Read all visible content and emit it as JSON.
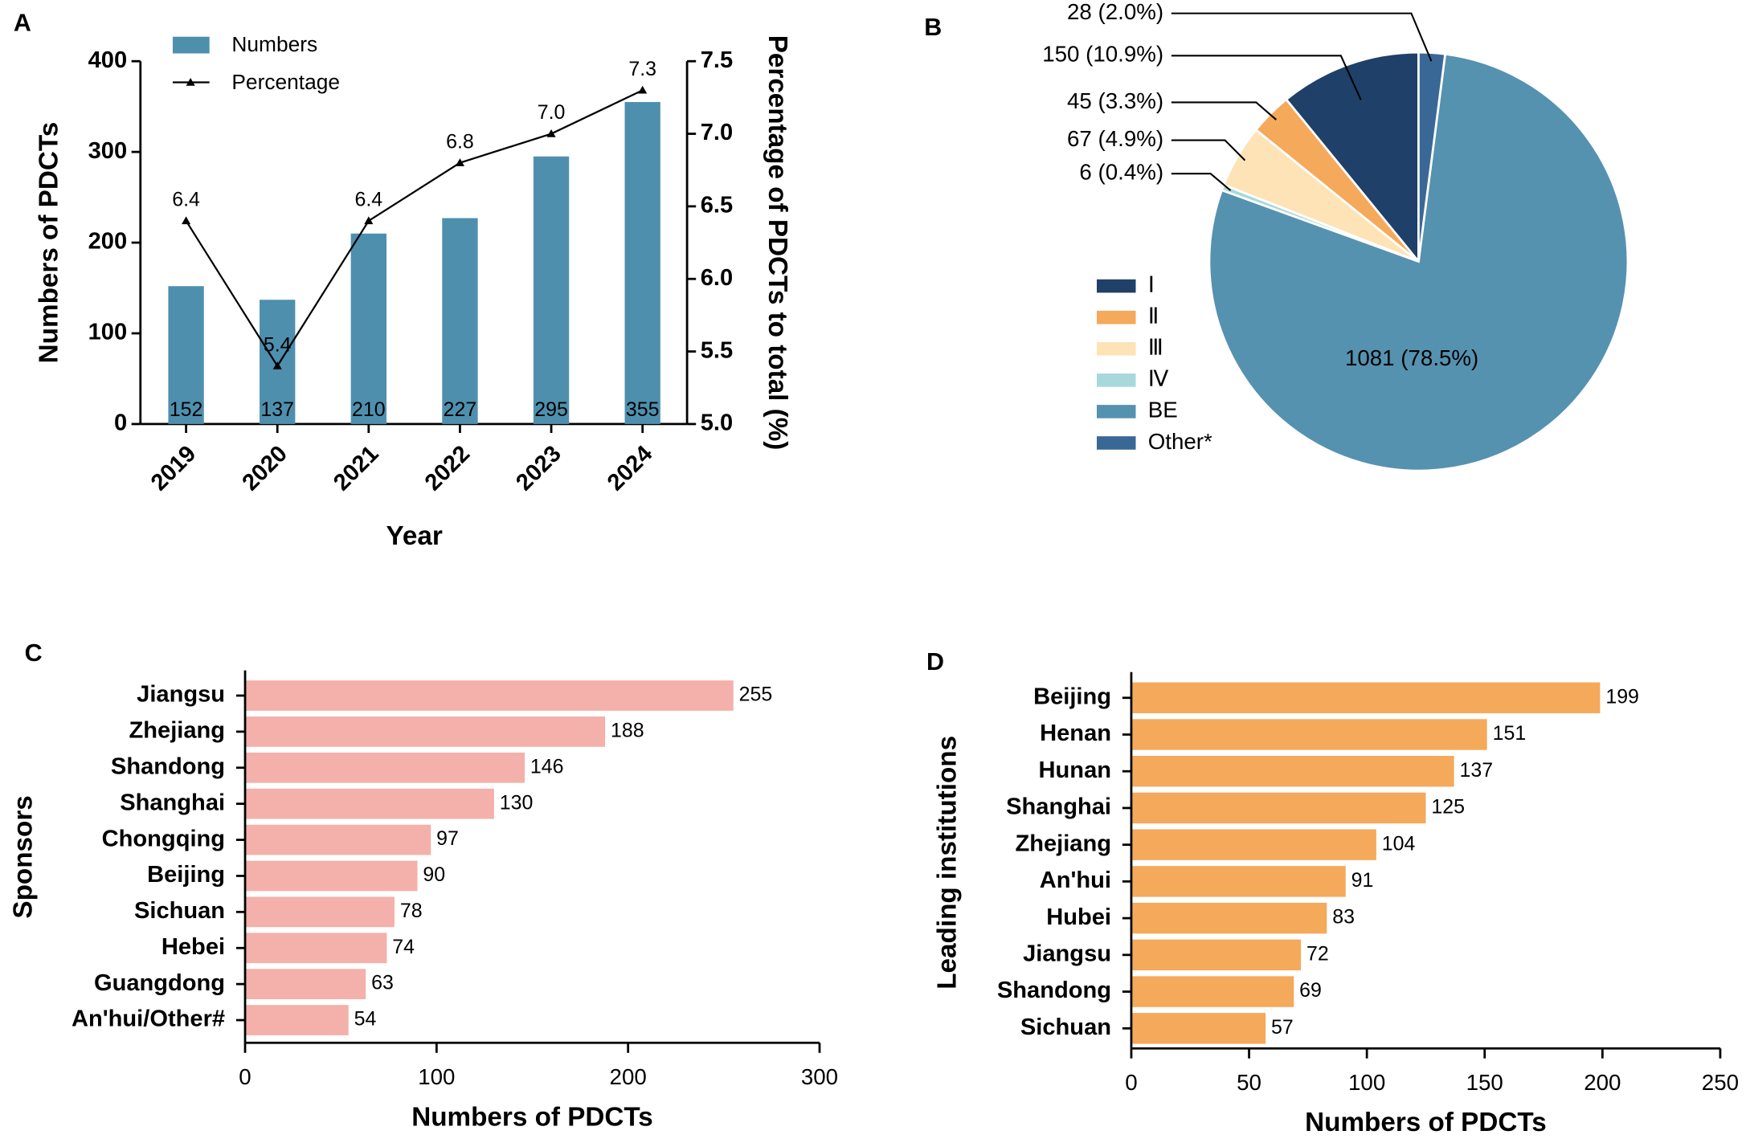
{
  "chart_data": [
    {
      "type": "combo",
      "panel_label": "A",
      "categories": [
        "2019",
        "2020",
        "2021",
        "2022",
        "2023",
        "2024"
      ],
      "x_label": "Year",
      "y_label": "Numbers of PDCTs",
      "y2_label": "Percentage of PDCTs to total (%)",
      "ylim": [
        0,
        400
      ],
      "yticks": [
        0,
        100,
        200,
        300,
        400
      ],
      "y2lim": [
        5,
        7.5
      ],
      "y2ticks": [
        {
          "value": 5,
          "label": "5.0"
        },
        5.5,
        {
          "value": 6,
          "label": "6.0"
        },
        6.5,
        {
          "value": 7,
          "label": "7.0"
        },
        7.5
      ],
      "series": [
        {
          "name": "Numbers",
          "kind": "bar",
          "color": "#4f8fae",
          "values": [
            152,
            137,
            210,
            227,
            295,
            355
          ]
        },
        {
          "name": "Percentage",
          "kind": "line",
          "axis": "y2",
          "color": "#000000",
          "values": [
            6.4,
            5.4,
            6.4,
            6.8,
            7.0,
            7.3
          ],
          "value_labels": [
            "6.4",
            "5.4",
            "6.4",
            "6.8",
            "7.0",
            "7.3"
          ]
        }
      ]
    },
    {
      "type": "pie",
      "panel_label": "B",
      "categories": [
        "Ⅰ",
        "Ⅱ",
        "Ⅲ",
        "Ⅳ",
        "BE",
        "Other*"
      ],
      "values": [
        150,
        45,
        67,
        6,
        1081,
        28
      ],
      "value_labels": [
        "150 (10.9%)",
        "45 (3.3%)",
        "67 (4.9%)",
        "6 (0.4%)",
        "1081 (78.5%)",
        "28 (2.0%)"
      ],
      "colors": [
        "#1f4068",
        "#f5a95a",
        "#fde3b5",
        "#a8d8dc",
        "#5592b0",
        "#3a6896"
      ]
    },
    {
      "type": "hbar",
      "panel_label": "C",
      "x_label": "Numbers of PDCTs",
      "y_label": "Sponsors",
      "categories": [
        "Jiangsu",
        "Zhejiang",
        "Shandong",
        "Shanghai",
        "Chongqing",
        "Beijing",
        "Sichuan",
        "Hebei",
        "Guangdong",
        "An'hui/Other#"
      ],
      "values": [
        255,
        188,
        146,
        130,
        97,
        90,
        78,
        74,
        63,
        54
      ],
      "color": "#f4b0aa",
      "xlim": [
        0,
        300
      ],
      "xticks": [
        0,
        100,
        200,
        300
      ]
    },
    {
      "type": "hbar",
      "panel_label": "D",
      "x_label": "Numbers of PDCTs",
      "y_label": "Leading institutions",
      "categories": [
        "Beijing",
        "Henan",
        "Hunan",
        "Shanghai",
        "Zhejiang",
        "An'hui",
        "Hubei",
        "Jiangsu",
        "Shandong",
        "Sichuan"
      ],
      "values": [
        199,
        151,
        137,
        125,
        104,
        91,
        83,
        72,
        69,
        57
      ],
      "color": "#f5a95a",
      "xlim": [
        0,
        250
      ],
      "xticks": [
        0,
        50,
        100,
        150,
        200,
        250
      ]
    }
  ]
}
